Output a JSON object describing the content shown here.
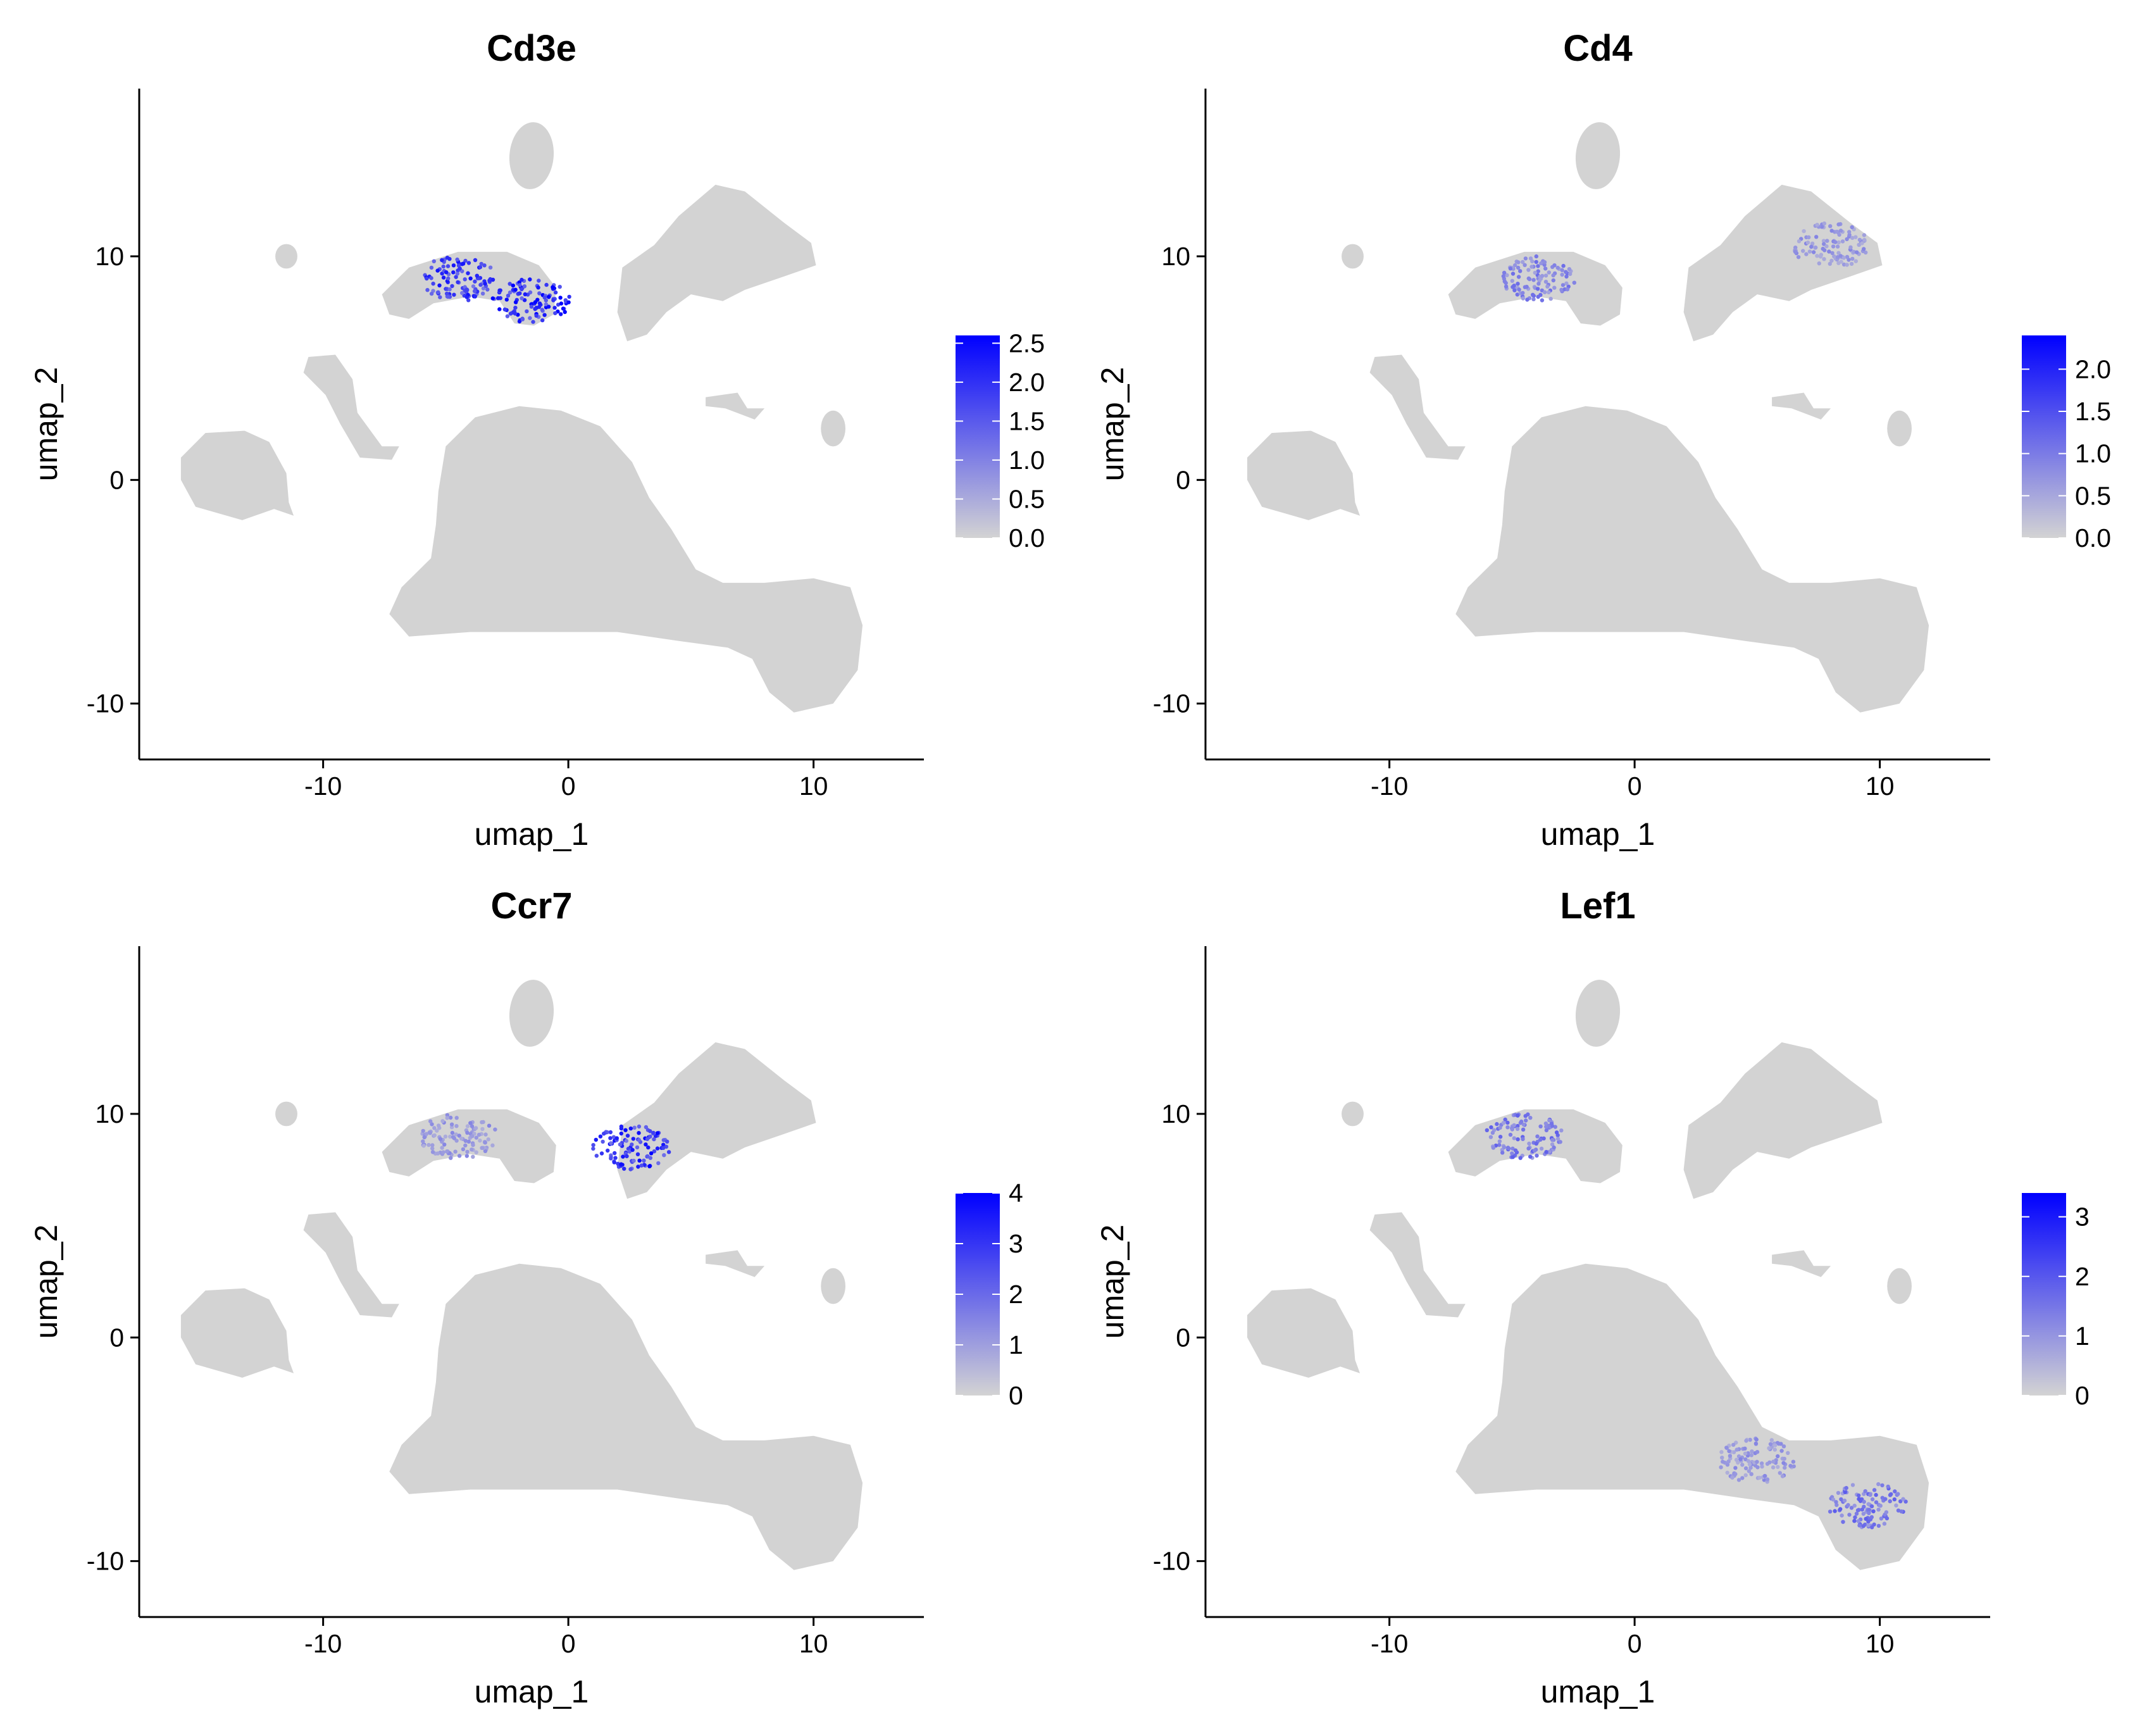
{
  "colors": {
    "low": "#d3d3d3",
    "high": "#0000ff",
    "axis": "#000000",
    "background": "#ffffff"
  },
  "chart_data": [
    {
      "type": "scatter",
      "title": "Cd3e",
      "xlabel": "umap_1",
      "ylabel": "umap_2",
      "xlim": [
        -17.5,
        14.5
      ],
      "ylim": [
        -12.5,
        17.5
      ],
      "xticks": [
        -10,
        0,
        10
      ],
      "yticks": [
        -10,
        0,
        10
      ],
      "color_scale": {
        "min": 0,
        "max": 2.6,
        "ticks": [
          "0.0",
          "0.5",
          "1.0",
          "1.5",
          "2.0",
          "2.5"
        ],
        "tick_values": [
          0,
          0.5,
          1.0,
          1.5,
          2.0,
          2.5
        ]
      },
      "expression_hotspots": [
        {
          "x": -4.5,
          "y": 9.0,
          "level": 0.75
        },
        {
          "x": -1.5,
          "y": 8.0,
          "level": 0.85
        }
      ]
    },
    {
      "type": "scatter",
      "title": "Cd4",
      "xlabel": "umap_1",
      "ylabel": "umap_2",
      "xlim": [
        -17.5,
        14.5
      ],
      "ylim": [
        -12.5,
        17.5
      ],
      "xticks": [
        -10,
        0,
        10
      ],
      "yticks": [
        -10,
        0,
        10
      ],
      "color_scale": {
        "min": 0,
        "max": 2.4,
        "ticks": [
          "0.0",
          "0.5",
          "1.0",
          "1.5",
          "2.0"
        ],
        "tick_values": [
          0,
          0.5,
          1.0,
          1.5,
          2.0
        ]
      },
      "expression_hotspots": [
        {
          "x": -4.0,
          "y": 9.0,
          "level": 0.4
        },
        {
          "x": 8.0,
          "y": 10.5,
          "level": 0.3
        }
      ]
    },
    {
      "type": "scatter",
      "title": "Ccr7",
      "xlabel": "umap_1",
      "ylabel": "umap_2",
      "xlim": [
        -17.5,
        14.5
      ],
      "ylim": [
        -12.5,
        17.5
      ],
      "xticks": [
        -10,
        0,
        10
      ],
      "yticks": [
        -10,
        0,
        10
      ],
      "color_scale": {
        "min": 0,
        "max": 4.0,
        "ticks": [
          "0",
          "1",
          "2",
          "3",
          "4"
        ],
        "tick_values": [
          0,
          1,
          2,
          3,
          4
        ]
      },
      "expression_hotspots": [
        {
          "x": 2.6,
          "y": 8.5,
          "level": 0.8
        },
        {
          "x": -4.5,
          "y": 9.0,
          "level": 0.3
        }
      ]
    },
    {
      "type": "scatter",
      "title": "Lef1",
      "xlabel": "umap_1",
      "ylabel": "umap_2",
      "xlim": [
        -17.5,
        14.5
      ],
      "ylim": [
        -12.5,
        17.5
      ],
      "xticks": [
        -10,
        0,
        10
      ],
      "yticks": [
        -10,
        0,
        10
      ],
      "color_scale": {
        "min": 0,
        "max": 3.4,
        "ticks": [
          "0",
          "1",
          "2",
          "3"
        ],
        "tick_values": [
          0,
          1,
          2,
          3
        ]
      },
      "expression_hotspots": [
        {
          "x": 9.5,
          "y": -7.5,
          "level": 0.45
        },
        {
          "x": -4.5,
          "y": 9.0,
          "level": 0.45
        },
        {
          "x": 5.0,
          "y": -5.5,
          "level": 0.3
        }
      ]
    }
  ]
}
